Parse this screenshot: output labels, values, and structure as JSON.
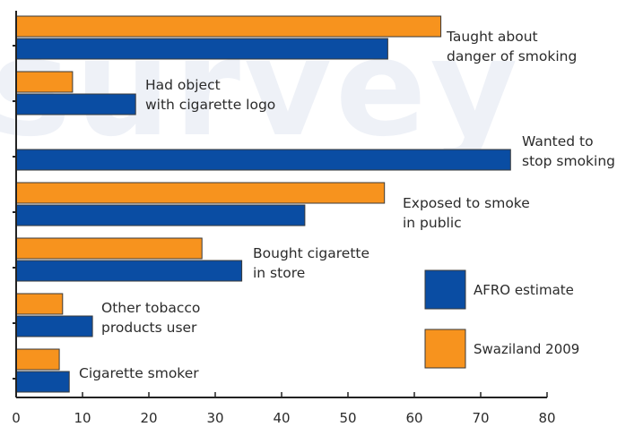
{
  "watermark_text": "survey",
  "chart_data": {
    "type": "bar",
    "orientation": "horizontal",
    "title": "",
    "xlabel": "",
    "ylabel": "",
    "xlim": [
      0,
      80
    ],
    "x_ticks": [
      "0",
      "10",
      "20",
      "30",
      "40",
      "50",
      "60",
      "70",
      "80"
    ],
    "grid": false,
    "legend_position": "bottom-right",
    "categories": [
      {
        "lines": [
          "Taught about",
          "danger of smoking"
        ]
      },
      {
        "lines": [
          "Had object",
          "with cigarette logo"
        ]
      },
      {
        "lines": [
          "Wanted to",
          "stop smoking"
        ]
      },
      {
        "lines": [
          "Exposed to smoke",
          "in public"
        ]
      },
      {
        "lines": [
          "Bought cigarette",
          "in store"
        ]
      },
      {
        "lines": [
          "Other tobacco",
          "products user"
        ]
      },
      {
        "lines": [
          "Cigarette smoker"
        ]
      }
    ],
    "series": [
      {
        "name": "Swaziland 2009",
        "color": "#f7931e",
        "values": [
          64,
          8.5,
          null,
          55.5,
          28,
          7,
          6.5
        ]
      },
      {
        "name": "AFRO estimate",
        "color": "#0a4da3",
        "values": [
          56,
          18,
          74.5,
          43.5,
          34,
          11.5,
          8
        ]
      }
    ],
    "legend": [
      {
        "name": "AFRO estimate",
        "color": "#0a4da3"
      },
      {
        "name": "Swaziland 2009",
        "color": "#f7931e"
      }
    ]
  }
}
